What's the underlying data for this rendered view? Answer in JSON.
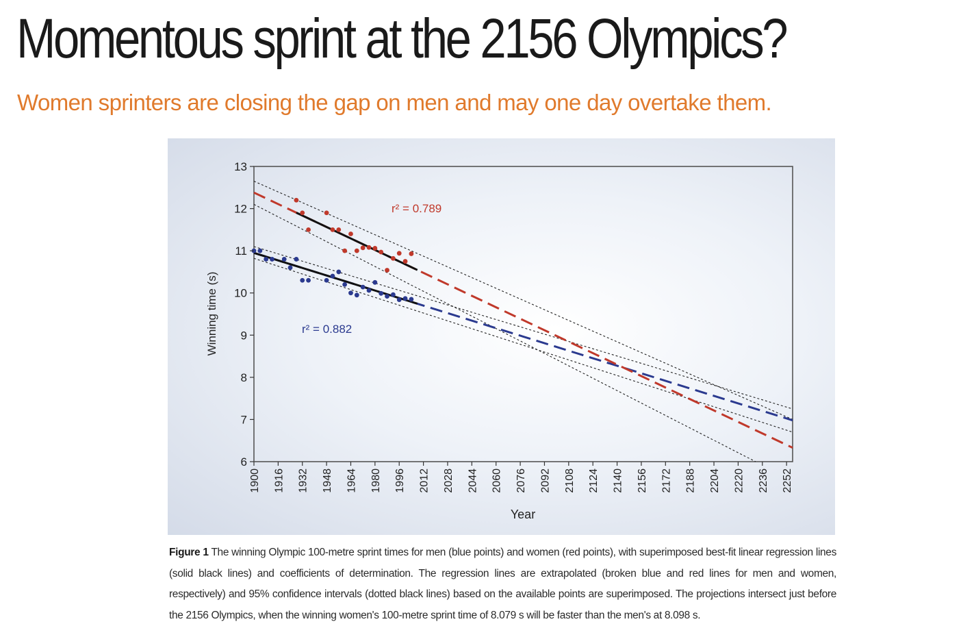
{
  "article": {
    "headline": "Momentous sprint at the 2156 Olympics?",
    "standfirst": "Women sprinters are closing the gap on men and may one day overtake them."
  },
  "figure": {
    "caption_label": "Figure 1",
    "caption_text": "The winning Olympic 100-metre sprint times for men (blue points) and women (red points), with superimposed best-fit linear regression lines (solid black lines) and coefficients of determination. The regression lines are extrapolated (broken blue and red lines for men and women, respectively) and 95% confidence intervals (dotted black lines) based on the available points are superimposed. The projections intersect just before the 2156 Olympics, when the winning women's 100-metre sprint time of 8.079 s will be faster than the men's at 8.098 s."
  },
  "chart_data": {
    "type": "scatter",
    "xlabel": "Year",
    "ylabel": "Winning time (s)",
    "xlim": [
      1900,
      2256
    ],
    "ylim": [
      6,
      13
    ],
    "x_ticks": [
      1900,
      1916,
      1932,
      1948,
      1964,
      1980,
      1996,
      2012,
      2028,
      2044,
      2060,
      2076,
      2092,
      2108,
      2124,
      2140,
      2156,
      2172,
      2188,
      2204,
      2220,
      2236,
      2252
    ],
    "y_ticks": [
      6,
      7,
      8,
      9,
      10,
      11,
      12,
      13
    ],
    "grid": false,
    "series": [
      {
        "color": "#2b3a8f",
        "points": [
          [
            1900,
            11.0
          ],
          [
            1904,
            11.0
          ],
          [
            1908,
            10.8
          ],
          [
            1912,
            10.8
          ],
          [
            1920,
            10.8
          ],
          [
            1924,
            10.6
          ],
          [
            1928,
            10.8
          ],
          [
            1932,
            10.3
          ],
          [
            1936,
            10.3
          ],
          [
            1948,
            10.3
          ],
          [
            1952,
            10.4
          ],
          [
            1956,
            10.5
          ],
          [
            1960,
            10.2
          ],
          [
            1964,
            10.0
          ],
          [
            1968,
            9.95
          ],
          [
            1972,
            10.14
          ],
          [
            1976,
            10.06
          ],
          [
            1980,
            10.25
          ],
          [
            1984,
            9.99
          ],
          [
            1988,
            9.92
          ],
          [
            1992,
            9.96
          ],
          [
            1996,
            9.84
          ],
          [
            2000,
            9.87
          ],
          [
            2004,
            9.85
          ]
        ],
        "fit": {
          "r2_label": "r² = 0.882",
          "r2": 0.882,
          "start": [
            1900,
            10.95
          ],
          "end": [
            2256,
            6.98
          ],
          "fit_end_year": 2008
        }
      },
      {
        "color": "#c0392b",
        "points": [
          [
            1928,
            12.2
          ],
          [
            1932,
            11.9
          ],
          [
            1936,
            11.5
          ],
          [
            1948,
            11.9
          ],
          [
            1952,
            11.5
          ],
          [
            1956,
            11.5
          ],
          [
            1960,
            11.0
          ],
          [
            1964,
            11.4
          ],
          [
            1968,
            11.0
          ],
          [
            1972,
            11.07
          ],
          [
            1976,
            11.08
          ],
          [
            1980,
            11.06
          ],
          [
            1984,
            10.97
          ],
          [
            1988,
            10.54
          ],
          [
            1992,
            10.82
          ],
          [
            1996,
            10.94
          ],
          [
            2000,
            10.75
          ],
          [
            2004,
            10.93
          ]
        ],
        "fit": {
          "r2_label": "r² = 0.789",
          "r2": 0.789,
          "start": [
            1900,
            12.38
          ],
          "end": [
            2256,
            6.33
          ],
          "fit_start_year": 1928,
          "fit_end_year": 2008
        }
      }
    ],
    "confidence_intervals": [
      {
        "upper": [
          [
            1900,
            11.1
          ],
          [
            2256,
            7.25
          ]
        ],
        "lower": [
          [
            1900,
            10.82
          ],
          [
            2256,
            6.7
          ]
        ]
      },
      {
        "upper": [
          [
            1900,
            12.65
          ],
          [
            2256,
            7.0
          ]
        ],
        "lower": [
          [
            1900,
            12.1
          ],
          [
            2256,
            5.55
          ]
        ]
      }
    ],
    "intersection": {
      "year": 2156,
      "women_time": 8.079,
      "men_time": 8.098
    }
  }
}
